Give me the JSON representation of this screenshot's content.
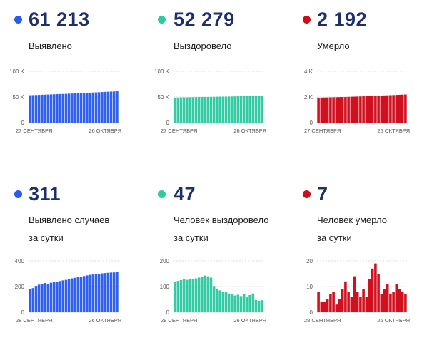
{
  "colors": {
    "blue": "#3060f0",
    "teal": "#33cba4",
    "red": "#d0101e"
  },
  "panels": [
    {
      "id": "cases-total",
      "big": "61 213",
      "label": "Выявлено",
      "color": "#3060f0",
      "dot_color": "#2c5bea"
    },
    {
      "id": "recovered-total",
      "big": "52 279",
      "label": "Выздоровело",
      "color": "#33cba4",
      "dot_color": "#2ccba0"
    },
    {
      "id": "deaths-total",
      "big": "2 192",
      "label": "Умерло",
      "color": "#d0101e",
      "dot_color": "#c8101c"
    },
    {
      "id": "cases-daily",
      "big": "311",
      "label": "Выявлено случаев\nза сутки",
      "color": "#3060f0",
      "dot_color": "#2c5bea"
    },
    {
      "id": "recovered-daily",
      "big": "47",
      "label": "Человек выздоровело\nза сутки",
      "color": "#33cba4",
      "dot_color": "#2ccba0"
    },
    {
      "id": "deaths-daily",
      "big": "7",
      "label": "Человек умерло\nза сутки",
      "color": "#d0101e",
      "dot_color": "#c8101c"
    }
  ],
  "chart_data": [
    {
      "type": "bar",
      "series_key": "cases-total",
      "x_start_label": "27 СЕНТЯБРЯ",
      "x_end_label": "26 ОКТЯБРЯ",
      "yticks": [
        0,
        50000,
        100000
      ],
      "ytick_labels": [
        "0",
        "50 K",
        "100 K"
      ],
      "ylim": [
        0,
        100000
      ],
      "values": [
        53400,
        53600,
        53800,
        54050,
        54300,
        54500,
        54750,
        55000,
        55250,
        55500,
        55700,
        55900,
        56150,
        56400,
        56700,
        57000,
        57250,
        57500,
        57800,
        58100,
        58400,
        58700,
        59000,
        59300,
        59600,
        59900,
        60200,
        60500,
        60800,
        61213
      ]
    },
    {
      "type": "bar",
      "series_key": "recovered-total",
      "x_start_label": "27 СЕНТЯБРЯ",
      "x_end_label": "26 ОКТЯБРЯ",
      "yticks": [
        0,
        50000,
        100000
      ],
      "ytick_labels": [
        "0",
        "50 K",
        "100 K"
      ],
      "ylim": [
        0,
        100000
      ],
      "values": [
        48800,
        48950,
        49100,
        49250,
        49400,
        49550,
        49700,
        49800,
        49900,
        50000,
        50100,
        50200,
        50300,
        50400,
        50500,
        50600,
        50700,
        50800,
        50900,
        51000,
        51100,
        51250,
        51400,
        51550,
        51700,
        51800,
        51900,
        52000,
        52200,
        52279
      ]
    },
    {
      "type": "bar",
      "series_key": "deaths-total",
      "x_start_label": "27 СЕНТЯБРЯ",
      "x_end_label": "26 ОКТЯБРЯ",
      "yticks": [
        0,
        2000,
        4000
      ],
      "ytick_labels": [
        "0",
        "2 K",
        "4 K"
      ],
      "ylim": [
        0,
        4000
      ],
      "values": [
        1950,
        1955,
        1960,
        1965,
        1972,
        1978,
        1985,
        1992,
        1998,
        2005,
        2012,
        2020,
        2028,
        2036,
        2045,
        2054,
        2063,
        2072,
        2081,
        2090,
        2100,
        2110,
        2120,
        2130,
        2140,
        2150,
        2160,
        2170,
        2182,
        2192
      ]
    },
    {
      "type": "bar",
      "series_key": "cases-daily",
      "x_start_label": "28 СЕНТЯБРЯ",
      "x_end_label": "26 ОКТЯБРЯ",
      "yticks": [
        0,
        200,
        400
      ],
      "ytick_labels": [
        "0",
        "200",
        "400"
      ],
      "ylim": [
        0,
        400
      ],
      "values": [
        180,
        188,
        205,
        215,
        222,
        228,
        222,
        230,
        234,
        238,
        243,
        248,
        252,
        258,
        264,
        268,
        274,
        278,
        282,
        287,
        291,
        294,
        297,
        300,
        303,
        305,
        307,
        309,
        310,
        311
      ]
    },
    {
      "type": "bar",
      "series_key": "recovered-daily",
      "x_start_label": "28 СЕНТЯБРЯ",
      "x_end_label": "26 ОКТЯБРЯ",
      "yticks": [
        0,
        100,
        200
      ],
      "ytick_labels": [
        "0",
        "100",
        "200"
      ],
      "ylim": [
        0,
        200
      ],
      "values": [
        118,
        122,
        125,
        128,
        126,
        130,
        128,
        132,
        135,
        138,
        143,
        140,
        135,
        102,
        90,
        85,
        78,
        80,
        73,
        70,
        65,
        68,
        63,
        70,
        58,
        67,
        73,
        48,
        45,
        47
      ]
    },
    {
      "type": "bar",
      "series_key": "deaths-daily",
      "x_start_label": "28 СЕНТЯБРЯ",
      "x_end_label": "26 ОКТЯБРЯ",
      "yticks": [
        0,
        10,
        20
      ],
      "ytick_labels": [
        "0",
        "10",
        "20"
      ],
      "ylim": [
        0,
        20
      ],
      "values": [
        8,
        4,
        4,
        5,
        7,
        8,
        3,
        5,
        9,
        12,
        8,
        6,
        14,
        8,
        6,
        9,
        6,
        13,
        17,
        19,
        15,
        7,
        9,
        11,
        7,
        8,
        11,
        9,
        8,
        7
      ]
    }
  ]
}
